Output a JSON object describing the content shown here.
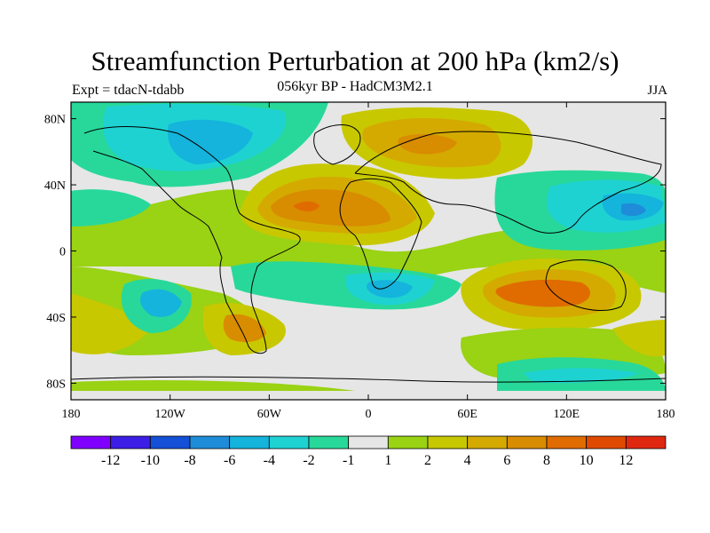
{
  "title": "Streamfunction Perturbation at 200 hPa (km2/s)",
  "subtitle": "056kyr BP - HadCM3M2.1",
  "left_label": "Expt = tdacN-tdabb",
  "right_label": "JJA",
  "lat_ticks": [
    "80N",
    "40N",
    "0",
    "40S",
    "80S"
  ],
  "lon_ticks": [
    "180",
    "120W",
    "60W",
    "0",
    "60E",
    "120E",
    "180"
  ],
  "colorbar": {
    "labels": [
      "-12",
      "-10",
      "-8",
      "-6",
      "-4",
      "-2",
      "-1",
      "1",
      "2",
      "4",
      "6",
      "8",
      "10",
      "12"
    ],
    "colors": [
      "#7f00ff",
      "#3c1ee6",
      "#1450d8",
      "#1e8cd8",
      "#14b4dc",
      "#1ed2d2",
      "#28d89a",
      "#e6e6e6",
      "#9ad214",
      "#c8c800",
      "#d4aa00",
      "#d88c00",
      "#e06c00",
      "#e04a00",
      "#e02810"
    ]
  },
  "colors": {
    "ocean_neutral": "#e6e6e6",
    "coast": "#000000"
  }
}
